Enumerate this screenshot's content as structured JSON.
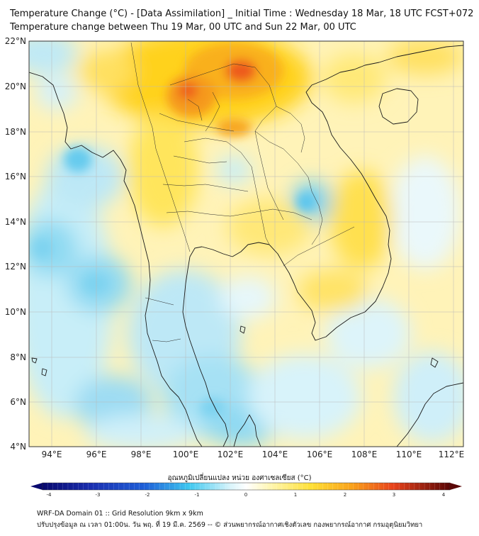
{
  "header": {
    "title_line1": "Temperature Change (°C) - [Data Assimilation] _ Initial Time : Wednesday 18 Mar, 18 UTC FCST+072",
    "title_line2": "Temperature change between Thu 19 Mar, 00 UTC and Sun 22 Mar, 00 UTC"
  },
  "map": {
    "lat_labels": [
      "22°N",
      "20°N",
      "18°N",
      "16°N",
      "14°N",
      "12°N",
      "10°N",
      "8°N",
      "6°N",
      "4°N"
    ],
    "lon_labels": [
      "94°E",
      "96°E",
      "98°E",
      "100°E",
      "102°E",
      "104°E",
      "106°E",
      "108°E",
      "110°E",
      "112°E"
    ]
  },
  "colorbar": {
    "title": "อุณหภูมิเปลี่ยนแปลง หน่วย องศาเซลเซียส (°C)",
    "ticks": [
      "-4",
      "-3",
      "-2",
      "-1",
      "0",
      "1",
      "2",
      "3",
      "4"
    ],
    "colors": {
      "cold_max": "#08086e",
      "cold": "#1e5fd8",
      "cyan": "#3ec8f0",
      "light": "#d8f4fb",
      "neutral": "#ffffff",
      "pale_yellow": "#fff6b0",
      "yellow": "#ffe035",
      "orange": "#f9a11a",
      "red": "#e8421a",
      "warm_max": "#5a0606"
    }
  },
  "footer": {
    "line1": "WRF-DA Domain 01 :: Grid Resolution 9km x 9km",
    "line2": "ปรับปรุงข้อมูล ณ เวลา 01:00น. วัน พฤ. ที่ 19 มี.ค. 2569 -- © ส่วนพยากรณ์อากาศเชิงตัวเลข กองพยากรณ์อากาศ กรมอุตุนิยมวิทยา"
  }
}
